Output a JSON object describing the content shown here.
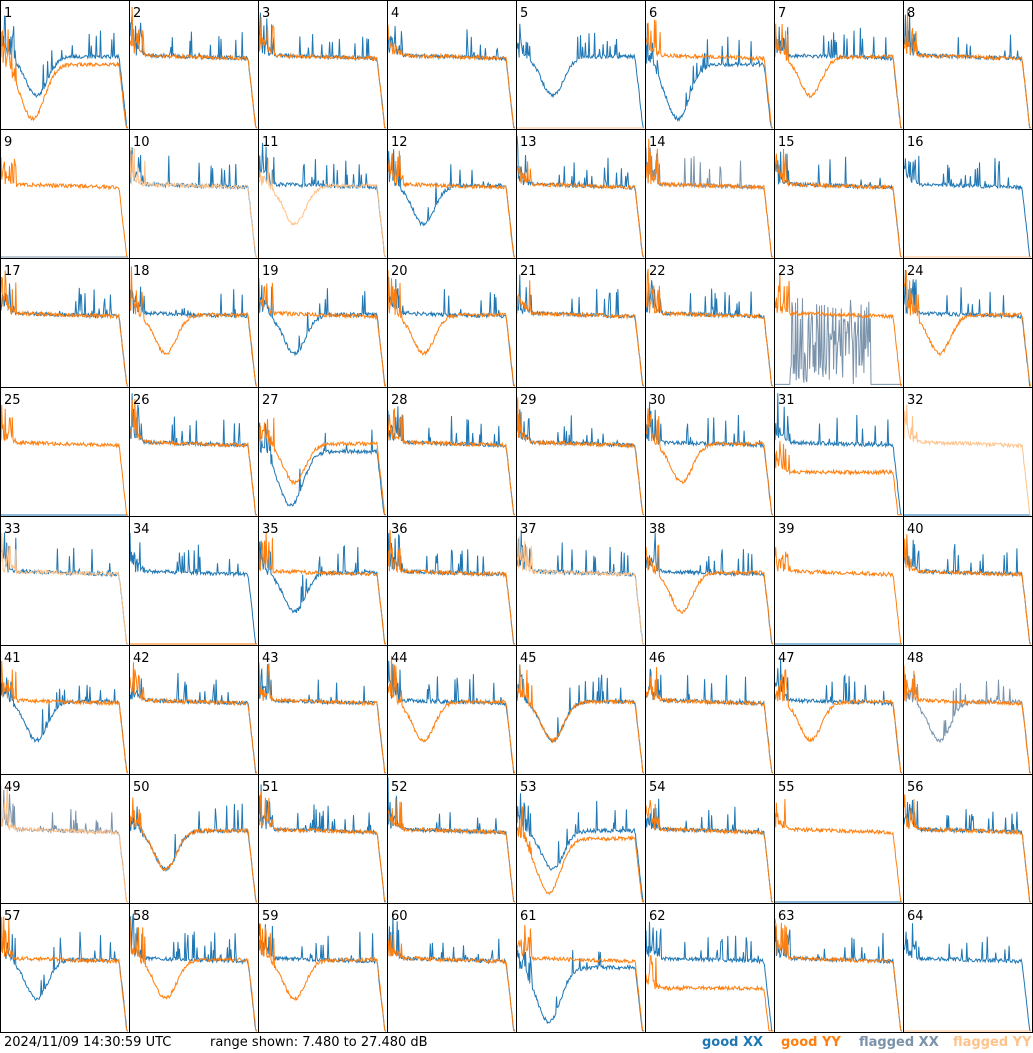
{
  "colors": {
    "good_xx": "#1f77b4",
    "good_yy": "#ff7f0e",
    "flagged_xx": "#7a93ab",
    "flagged_yy": "#ffc28a",
    "frame": "#000000"
  },
  "footer": {
    "timestamp": "2024/11/09 14:30:59 UTC",
    "range": "range shown: 7.480 to 27.480 dB"
  },
  "legend": {
    "good_xx": "good XX",
    "good_yy": "good YY",
    "flagged_xx": "flagged XX",
    "flagged_yy": "flagged YY"
  },
  "chart_data": {
    "type": "line",
    "ylim": [
      7.48,
      27.48
    ],
    "yunit": "dB",
    "grid_rows": 8,
    "grid_cols": 8,
    "tiles": [
      {
        "id": "1",
        "xx": "dip",
        "yy": "deep",
        "xx_flag": false,
        "yy_flag": false
      },
      {
        "id": "2",
        "xx": "flat",
        "yy": "flat",
        "xx_flag": false,
        "yy_flag": false
      },
      {
        "id": "3",
        "xx": "flat",
        "yy": "flat",
        "xx_flag": false,
        "yy_flag": false
      },
      {
        "id": "4",
        "xx": "flat",
        "yy": "flat",
        "xx_flag": false,
        "yy_flag": false
      },
      {
        "id": "5",
        "xx": "dip",
        "yy": "none",
        "xx_flag": false,
        "yy_flag": true
      },
      {
        "id": "6",
        "xx": "deep",
        "yy": "flat",
        "xx_flag": false,
        "yy_flag": false
      },
      {
        "id": "7",
        "xx": "flat",
        "yy": "dip",
        "xx_flag": false,
        "yy_flag": false
      },
      {
        "id": "8",
        "xx": "flat",
        "yy": "flat",
        "xx_flag": false,
        "yy_flag": false
      },
      {
        "id": "9",
        "xx": "none",
        "yy": "flat",
        "xx_flag": true,
        "yy_flag": false
      },
      {
        "id": "10",
        "xx": "flat",
        "yy": "flat",
        "xx_flag": false,
        "yy_flag": true
      },
      {
        "id": "11",
        "xx": "flat",
        "yy": "dip",
        "xx_flag": false,
        "yy_flag": true
      },
      {
        "id": "12",
        "xx": "dip",
        "yy": "flat",
        "xx_flag": false,
        "yy_flag": false
      },
      {
        "id": "13",
        "xx": "flat",
        "yy": "flat",
        "xx_flag": false,
        "yy_flag": false
      },
      {
        "id": "14",
        "xx": "flat",
        "yy": "flat",
        "xx_flag": true,
        "yy_flag": false
      },
      {
        "id": "15",
        "xx": "flat",
        "yy": "flat",
        "xx_flag": false,
        "yy_flag": false
      },
      {
        "id": "16",
        "xx": "flat",
        "yy": "none",
        "xx_flag": false,
        "yy_flag": true
      },
      {
        "id": "17",
        "xx": "flat",
        "yy": "flat",
        "xx_flag": false,
        "yy_flag": false
      },
      {
        "id": "18",
        "xx": "flat",
        "yy": "dip",
        "xx_flag": false,
        "yy_flag": false
      },
      {
        "id": "19",
        "xx": "dip",
        "yy": "flat",
        "xx_flag": false,
        "yy_flag": false
      },
      {
        "id": "20",
        "xx": "flat",
        "yy": "dip",
        "xx_flag": false,
        "yy_flag": false
      },
      {
        "id": "21",
        "xx": "flat",
        "yy": "flat",
        "xx_flag": false,
        "yy_flag": false
      },
      {
        "id": "22",
        "xx": "flat",
        "yy": "flat",
        "xx_flag": false,
        "yy_flag": false
      },
      {
        "id": "23",
        "xx": "noise",
        "yy": "flat",
        "xx_flag": true,
        "yy_flag": false
      },
      {
        "id": "24",
        "xx": "flat",
        "yy": "dip",
        "xx_flag": false,
        "yy_flag": false
      },
      {
        "id": "25",
        "xx": "none",
        "yy": "flat",
        "xx_flag": false,
        "yy_flag": false
      },
      {
        "id": "26",
        "xx": "flat",
        "yy": "flat",
        "xx_flag": false,
        "yy_flag": false
      },
      {
        "id": "27",
        "xx": "deep",
        "yy": "dip",
        "xx_flag": false,
        "yy_flag": false
      },
      {
        "id": "28",
        "xx": "flat",
        "yy": "flat",
        "xx_flag": false,
        "yy_flag": false
      },
      {
        "id": "29",
        "xx": "flat",
        "yy": "flat",
        "xx_flag": false,
        "yy_flag": false
      },
      {
        "id": "30",
        "xx": "flat",
        "yy": "dip",
        "xx_flag": false,
        "yy_flag": false
      },
      {
        "id": "31",
        "xx": "flat",
        "yy": "low",
        "xx_flag": false,
        "yy_flag": false
      },
      {
        "id": "32",
        "xx": "none",
        "yy": "flat",
        "xx_flag": false,
        "yy_flag": true
      },
      {
        "id": "33",
        "xx": "flat",
        "yy": "flat",
        "xx_flag": false,
        "yy_flag": true
      },
      {
        "id": "34",
        "xx": "flat",
        "yy": "none",
        "xx_flag": false,
        "yy_flag": false
      },
      {
        "id": "35",
        "xx": "dip",
        "yy": "flat",
        "xx_flag": false,
        "yy_flag": false
      },
      {
        "id": "36",
        "xx": "flat",
        "yy": "flat",
        "xx_flag": false,
        "yy_flag": false
      },
      {
        "id": "37",
        "xx": "flat",
        "yy": "flat",
        "xx_flag": false,
        "yy_flag": true
      },
      {
        "id": "38",
        "xx": "flat",
        "yy": "dip",
        "xx_flag": false,
        "yy_flag": false
      },
      {
        "id": "39",
        "xx": "none",
        "yy": "flat",
        "xx_flag": false,
        "yy_flag": false
      },
      {
        "id": "40",
        "xx": "flat",
        "yy": "flat",
        "xx_flag": false,
        "yy_flag": false
      },
      {
        "id": "41",
        "xx": "dip",
        "yy": "flat",
        "xx_flag": false,
        "yy_flag": false
      },
      {
        "id": "42",
        "xx": "flat",
        "yy": "flat",
        "xx_flag": false,
        "yy_flag": false
      },
      {
        "id": "43",
        "xx": "flat",
        "yy": "flat",
        "xx_flag": false,
        "yy_flag": false
      },
      {
        "id": "44",
        "xx": "flat",
        "yy": "dip",
        "xx_flag": false,
        "yy_flag": false
      },
      {
        "id": "45",
        "xx": "dip",
        "yy": "dip",
        "xx_flag": false,
        "yy_flag": false
      },
      {
        "id": "46",
        "xx": "flat",
        "yy": "flat",
        "xx_flag": false,
        "yy_flag": false
      },
      {
        "id": "47",
        "xx": "flat",
        "yy": "dip",
        "xx_flag": false,
        "yy_flag": false
      },
      {
        "id": "48",
        "xx": "dip",
        "yy": "flat",
        "xx_flag": true,
        "yy_flag": false
      },
      {
        "id": "49",
        "xx": "flat",
        "yy": "flat",
        "xx_flag": true,
        "yy_flag": true
      },
      {
        "id": "50",
        "xx": "dip",
        "yy": "dip",
        "xx_flag": false,
        "yy_flag": false
      },
      {
        "id": "51",
        "xx": "flat",
        "yy": "flat",
        "xx_flag": false,
        "yy_flag": false
      },
      {
        "id": "52",
        "xx": "flat",
        "yy": "flat",
        "xx_flag": false,
        "yy_flag": false
      },
      {
        "id": "53",
        "xx": "dip",
        "yy": "deep",
        "xx_flag": false,
        "yy_flag": false
      },
      {
        "id": "54",
        "xx": "flat",
        "yy": "flat",
        "xx_flag": false,
        "yy_flag": false
      },
      {
        "id": "55",
        "xx": "none",
        "yy": "flat",
        "xx_flag": false,
        "yy_flag": false
      },
      {
        "id": "56",
        "xx": "flat",
        "yy": "flat",
        "xx_flag": false,
        "yy_flag": false
      },
      {
        "id": "57",
        "xx": "dip",
        "yy": "flat",
        "xx_flag": false,
        "yy_flag": false
      },
      {
        "id": "58",
        "xx": "flat",
        "yy": "dip",
        "xx_flag": false,
        "yy_flag": false
      },
      {
        "id": "59",
        "xx": "flat",
        "yy": "dip",
        "xx_flag": false,
        "yy_flag": false
      },
      {
        "id": "60",
        "xx": "flat",
        "yy": "flat",
        "xx_flag": false,
        "yy_flag": false
      },
      {
        "id": "61",
        "xx": "deep",
        "yy": "flat",
        "xx_flag": false,
        "yy_flag": false
      },
      {
        "id": "62",
        "xx": "flat",
        "yy": "low",
        "xx_flag": false,
        "yy_flag": false
      },
      {
        "id": "63",
        "xx": "flat",
        "yy": "flat",
        "xx_flag": false,
        "yy_flag": false
      },
      {
        "id": "64",
        "xx": "flat",
        "yy": "none",
        "xx_flag": false,
        "yy_flag": true
      }
    ]
  }
}
